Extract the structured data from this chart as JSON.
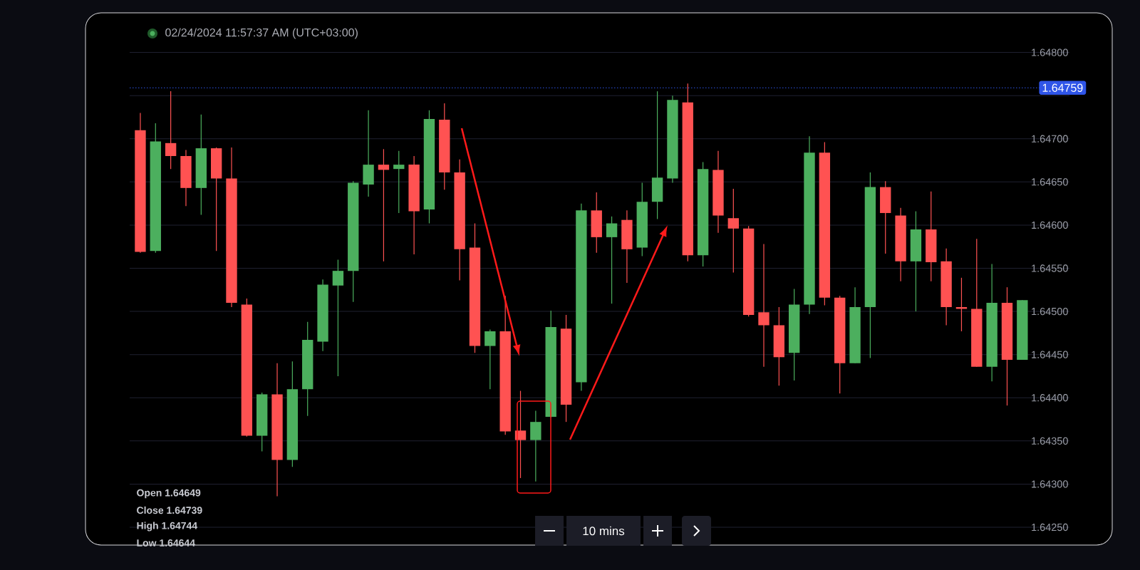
{
  "chart_data": {
    "type": "candlestick",
    "categories": [
      null,
      null,
      null,
      null,
      null,
      null,
      null,
      null,
      null,
      null,
      null,
      null,
      null,
      null,
      null,
      null,
      null,
      null,
      null,
      null,
      null,
      null,
      null,
      null,
      null,
      null,
      null,
      null,
      null,
      null,
      null,
      null,
      null,
      null,
      null,
      null,
      null,
      null,
      null,
      null,
      null,
      null,
      null,
      null,
      null,
      null,
      null,
      null,
      null,
      null,
      null,
      null,
      null,
      null,
      null,
      null,
      null,
      null,
      null
    ],
    "ohlc": [
      [
        1.6471,
        1.6473,
        1.64568,
        1.64569
      ],
      [
        1.6457,
        1.64718,
        1.64568,
        1.64697
      ],
      [
        1.64695,
        1.64755,
        1.64665,
        1.6468
      ],
      [
        1.6468,
        1.64687,
        1.64622,
        1.64643
      ],
      [
        1.64643,
        1.64728,
        1.64612,
        1.64689
      ],
      [
        1.64689,
        1.6469,
        1.6457,
        1.64654
      ],
      [
        1.64654,
        1.6469,
        1.64505,
        1.6451
      ],
      [
        1.64508,
        1.64515,
        1.64355,
        1.64356
      ],
      [
        1.64356,
        1.64406,
        1.64338,
        1.64404
      ],
      [
        1.64404,
        1.6444,
        1.64286,
        1.64328
      ],
      [
        1.64328,
        1.64442,
        1.6432,
        1.6441
      ],
      [
        1.6441,
        1.64488,
        1.64379,
        1.64467
      ],
      [
        1.64465,
        1.64537,
        1.64454,
        1.64531
      ],
      [
        1.6453,
        1.6456,
        1.64425,
        1.64547
      ],
      [
        1.64547,
        1.64651,
        1.64511,
        1.64649
      ],
      [
        1.64647,
        1.64733,
        1.64633,
        1.6467
      ],
      [
        1.6467,
        1.64688,
        1.64558,
        1.64664
      ],
      [
        1.64665,
        1.64686,
        1.64614,
        1.6467
      ],
      [
        1.6467,
        1.6468,
        1.64566,
        1.64616
      ],
      [
        1.64618,
        1.64733,
        1.64602,
        1.64723
      ],
      [
        1.64722,
        1.64741,
        1.64641,
        1.64661
      ],
      [
        1.64661,
        1.64676,
        1.64536,
        1.64572
      ],
      [
        1.64574,
        1.64602,
        1.64452,
        1.6446
      ],
      [
        1.6446,
        1.64479,
        1.6441,
        1.64477
      ],
      [
        1.64477,
        1.64518,
        1.64357,
        1.64361
      ],
      [
        1.64362,
        1.64408,
        1.64307,
        1.64351
      ],
      [
        1.64351,
        1.64385,
        1.64303,
        1.64372
      ],
      [
        1.64378,
        1.64501,
        1.64377,
        1.64482
      ],
      [
        1.6448,
        1.64496,
        1.64372,
        1.64392
      ],
      [
        1.64418,
        1.64625,
        1.64408,
        1.64617
      ],
      [
        1.64617,
        1.64638,
        1.64568,
        1.64586
      ],
      [
        1.64586,
        1.6461,
        1.64509,
        1.64602
      ],
      [
        1.64606,
        1.64617,
        1.64533,
        1.64572
      ],
      [
        1.64574,
        1.64649,
        1.64564,
        1.64627
      ],
      [
        1.64627,
        1.64755,
        1.64607,
        1.64655
      ],
      [
        1.64654,
        1.6475,
        1.64649,
        1.64745
      ],
      [
        1.64742,
        1.64764,
        1.64558,
        1.64565
      ],
      [
        1.64565,
        1.64673,
        1.64552,
        1.64665
      ],
      [
        1.64664,
        1.64686,
        1.64591,
        1.64611
      ],
      [
        1.64608,
        1.64642,
        1.64545,
        1.64596
      ],
      [
        1.64596,
        1.64599,
        1.64494,
        1.64496
      ],
      [
        1.64499,
        1.64578,
        1.64436,
        1.64484
      ],
      [
        1.64484,
        1.64505,
        1.64414,
        1.64447
      ],
      [
        1.64452,
        1.64526,
        1.6442,
        1.64508
      ],
      [
        1.64508,
        1.64703,
        1.64497,
        1.64684
      ],
      [
        1.64684,
        1.64696,
        1.64507,
        1.64516
      ],
      [
        1.64516,
        1.64518,
        1.64405,
        1.6444
      ],
      [
        1.6444,
        1.64528,
        1.6444,
        1.64505
      ],
      [
        1.64505,
        1.64661,
        1.64446,
        1.64644
      ],
      [
        1.64644,
        1.64651,
        1.64567,
        1.64614
      ],
      [
        1.64611,
        1.6462,
        1.64535,
        1.64558
      ],
      [
        1.64558,
        1.64616,
        1.645,
        1.64595
      ],
      [
        1.64595,
        1.64639,
        1.64535,
        1.64557
      ],
      [
        1.64558,
        1.64573,
        1.64484,
        1.64505
      ],
      [
        1.64505,
        1.64539,
        1.64477,
        1.64503
      ],
      [
        1.64503,
        1.64584,
        1.64436,
        1.64436
      ],
      [
        1.64436,
        1.64555,
        1.64419,
        1.6451
      ],
      [
        1.6451,
        1.64528,
        1.64391,
        1.64444
      ],
      [
        1.64444,
        1.64513,
        1.64444,
        1.64513
      ]
    ],
    "ylim": [
      1.6425,
      1.648
    ],
    "yticks": [
      {
        "value": 1.6425,
        "label": "1.64250"
      },
      {
        "value": 1.643,
        "label": "1.64300"
      },
      {
        "value": 1.6435,
        "label": "1.64350"
      },
      {
        "value": 1.644,
        "label": "1.64400"
      },
      {
        "value": 1.6445,
        "label": "1.64450"
      },
      {
        "value": 1.645,
        "label": "1.64500"
      },
      {
        "value": 1.6455,
        "label": "1.64550"
      },
      {
        "value": 1.646,
        "label": "1.64600"
      },
      {
        "value": 1.6465,
        "label": "1.64650"
      },
      {
        "value": 1.647,
        "label": "1.64700"
      },
      {
        "value": 1.6475,
        "label": null
      },
      {
        "value": 1.648,
        "label": "1.64800"
      }
    ],
    "grid": "y",
    "tick_labels": "y",
    "ref_lines": [
      {
        "axis": "y",
        "value": 1.64759,
        "label": "1.64759",
        "color": "#2f55e8",
        "line_style": "dotted"
      }
    ],
    "annotations": [
      "02/24/2024 11:57:37 AM (UTC+03:00)",
      "Open 1.64649",
      "Close 1.64739",
      "High 1.64744",
      "Low 1.64644",
      "10 mins"
    ]
  }
}
